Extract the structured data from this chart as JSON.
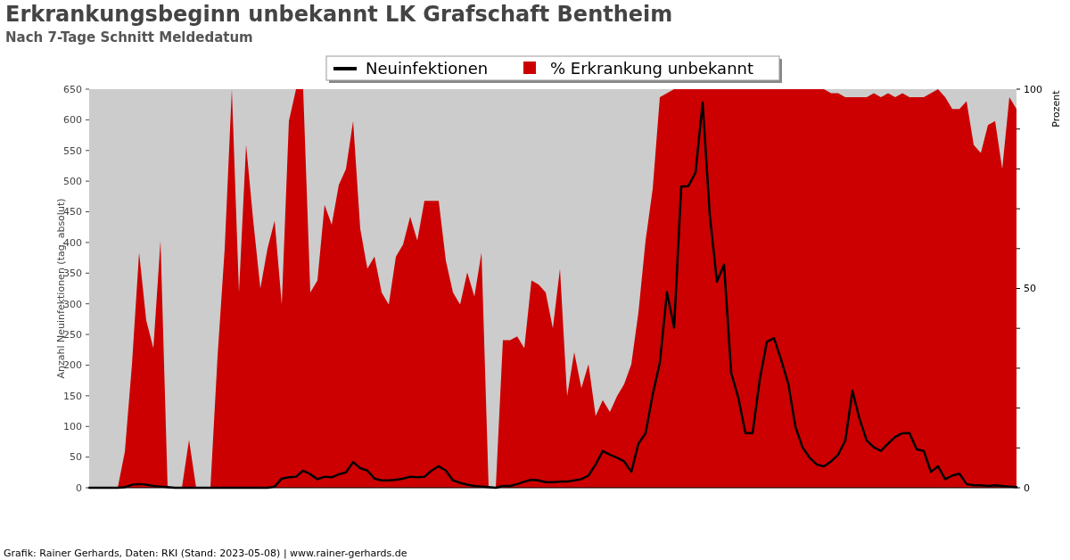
{
  "chart_data": {
    "type": "line",
    "title": "Erkrankungsbeginn unbekannt LK Grafschaft Bentheim",
    "subtitle": "Nach 7-Tage Schnitt Meldedatum",
    "ylabel": "Anzahl Neuinfektionen (tag. absolut)",
    "y2label": "Prozent",
    "annotations": [
      "Grafik: Rainer Gerhards, Daten: RKI (Stand: 2023-05-08) | www.rainer-gerhards.de"
    ],
    "categories": [
      null,
      null,
      null,
      null,
      null,
      null,
      null,
      null,
      null,
      null,
      null,
      null,
      null,
      null,
      null,
      null,
      null,
      null,
      null,
      null,
      null,
      null,
      null,
      null,
      null,
      null,
      null,
      null,
      null,
      null,
      null,
      null,
      null,
      null,
      null,
      null,
      null,
      null,
      null,
      null,
      null,
      null,
      null,
      null,
      null,
      null,
      null,
      null,
      null,
      null,
      null,
      null,
      null,
      null,
      null,
      null,
      null,
      null,
      null,
      null,
      null,
      null,
      null,
      null,
      null,
      null,
      null,
      null,
      null,
      null,
      null,
      null,
      null,
      null,
      null,
      null,
      null,
      null,
      null,
      null,
      null,
      null,
      null,
      null,
      null,
      null,
      null,
      null,
      null,
      null,
      null,
      null,
      null,
      null,
      null,
      null,
      null,
      null,
      null,
      null,
      null,
      null,
      null,
      null,
      null,
      null,
      null,
      null,
      null,
      null,
      null,
      null,
      null,
      null,
      null,
      null,
      null,
      null,
      null,
      null,
      null,
      null,
      null,
      null,
      null,
      null,
      null,
      null,
      null,
      null,
      null
    ],
    "series": [
      {
        "name": "% Erkrankung unbekannt",
        "type": "area",
        "axis": "y2",
        "color": "#cc0000",
        "values": [
          0,
          0,
          0,
          0,
          0,
          9,
          31,
          59,
          42,
          35,
          62,
          0,
          0,
          0,
          12,
          0,
          0,
          0,
          33,
          60,
          100,
          49,
          86,
          67,
          50,
          60,
          67,
          46,
          92,
          100,
          100,
          49,
          52,
          71,
          66,
          76,
          80,
          92,
          65,
          55,
          58,
          49,
          46,
          58,
          61,
          68,
          62,
          72,
          72,
          72,
          57,
          49,
          46,
          54,
          48,
          59,
          0,
          0,
          37,
          37,
          38,
          35,
          52,
          51,
          49,
          40,
          55,
          23,
          34,
          25,
          31,
          18,
          22,
          19,
          23,
          26,
          31,
          44,
          62,
          75,
          98,
          99,
          100,
          100,
          100,
          100,
          100,
          100,
          100,
          100,
          100,
          100,
          100,
          100,
          100,
          100,
          100,
          100,
          100,
          100,
          100,
          100,
          100,
          100,
          99,
          99,
          98,
          98,
          98,
          98,
          99,
          98,
          99,
          98,
          99,
          98,
          98,
          98,
          99,
          100,
          98,
          95,
          95,
          97,
          86,
          84,
          91,
          92,
          80,
          98,
          95
        ]
      },
      {
        "name": "Neuinfektionen",
        "color": "#000000",
        "values": [
          0,
          0,
          0,
          0,
          0,
          1,
          5,
          6,
          5,
          3,
          2,
          1,
          0,
          0,
          0,
          0,
          0,
          0,
          0,
          0,
          0,
          0,
          0,
          0,
          0,
          0,
          2,
          15,
          17,
          18,
          28,
          22,
          14,
          18,
          17,
          22,
          25,
          42,
          32,
          28,
          15,
          12,
          12,
          13,
          15,
          18,
          17,
          18,
          28,
          35,
          28,
          12,
          8,
          5,
          3,
          2,
          1,
          0,
          3,
          3,
          6,
          10,
          13,
          12,
          9,
          9,
          10,
          10,
          12,
          14,
          20,
          38,
          60,
          54,
          49,
          43,
          26,
          72,
          89,
          152,
          204,
          319,
          261,
          491,
          492,
          514,
          628,
          445,
          336,
          364,
          187,
          147,
          89,
          89,
          176,
          238,
          244,
          209,
          170,
          100,
          66,
          49,
          38,
          35,
          43,
          54,
          77,
          158,
          112,
          77,
          66,
          60,
          72,
          83,
          89,
          89,
          63,
          60,
          26,
          35,
          14,
          20,
          23,
          6,
          4,
          4,
          3,
          4,
          3,
          2,
          1
        ]
      }
    ],
    "ylim": [
      0,
      650
    ],
    "yticks": [
      0,
      50,
      100,
      150,
      200,
      250,
      300,
      350,
      400,
      450,
      500,
      550,
      600,
      650
    ],
    "y2lim": [
      0,
      100
    ],
    "y2ticks": [
      0,
      {
        "value": 10,
        "label": null
      },
      {
        "value": 20,
        "label": null
      },
      {
        "value": 30,
        "label": null
      },
      {
        "value": 40,
        "label": null
      },
      50,
      {
        "value": 60,
        "label": null
      },
      {
        "value": 70,
        "label": null
      },
      {
        "value": 80,
        "label": null
      },
      {
        "value": 90,
        "label": null
      },
      100
    ],
    "legend": "top",
    "grid": false
  }
}
